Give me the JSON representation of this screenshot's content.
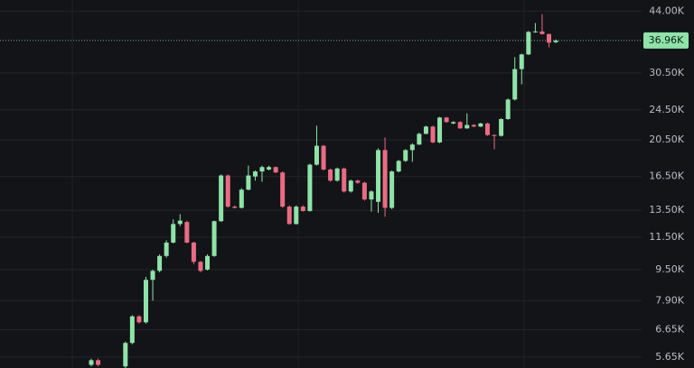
{
  "chart_data": {
    "type": "candlestick",
    "log_scale": true,
    "grid": true,
    "up_color": "#8ee3a8",
    "down_color": "#ea6b83",
    "ylim": [
      5300,
      47000
    ],
    "yticks": [
      {
        "value": 5650,
        "label": "5.65K"
      },
      {
        "value": 6650,
        "label": "6.65K"
      },
      {
        "value": 7900,
        "label": "7.90K"
      },
      {
        "value": 9500,
        "label": "9.50K"
      },
      {
        "value": 11500,
        "label": "11.50K"
      },
      {
        "value": 13500,
        "label": "13.50K"
      },
      {
        "value": 16500,
        "label": "16.50K"
      },
      {
        "value": 20500,
        "label": "20.50K"
      },
      {
        "value": 24500,
        "label": "24.50K"
      },
      {
        "value": 30500,
        "label": "30.50K"
      },
      {
        "value": 44000,
        "label": "44.00K"
      }
    ],
    "last_price": {
      "value": 36960,
      "label": "36.96K"
    },
    "open": [
      5400,
      5550,
      null,
      null,
      null,
      5350,
      6150,
      7200,
      6950,
      8940,
      9430,
      10300,
      11150,
      12450,
      12600,
      11150,
      9950,
      9500,
      10300,
      12660,
      16600,
      13800,
      13700,
      15260,
      16500,
      17000,
      17200,
      17450,
      16900,
      13800,
      12450,
      13800,
      13450,
      17700,
      19800,
      17200,
      16100,
      17300,
      15100,
      16100,
      15900,
      14400,
      14200,
      19300,
      13700,
      17000,
      18100,
      19300,
      19940,
      21250,
      22190,
      20200,
      23410,
      22600,
      22790,
      21950,
      22400,
      22190,
      22600,
      21100,
      21000,
      23200,
      26050,
      31200,
      34040,
      38900,
      39000,
      38400,
      36600
    ],
    "high": [
      5600,
      5600,
      null,
      null,
      null,
      6200,
      7250,
      7250,
      9100,
      9500,
      10400,
      11300,
      12800,
      13200,
      12700,
      11200,
      10000,
      10400,
      12700,
      16700,
      16700,
      13900,
      15400,
      17600,
      17100,
      17600,
      17600,
      17500,
      17000,
      13900,
      13900,
      13900,
      17800,
      22300,
      19900,
      17300,
      17400,
      17400,
      16200,
      16200,
      16000,
      15200,
      19500,
      20800,
      17100,
      18200,
      19400,
      20100,
      21400,
      22300,
      22300,
      23500,
      23500,
      22900,
      22900,
      24000,
      22500,
      22700,
      22700,
      21200,
      23300,
      26200,
      33500,
      34200,
      39100,
      41000,
      43200,
      38500,
      37200
    ],
    "low": [
      5350,
      5350,
      null,
      null,
      null,
      5300,
      6100,
      6900,
      6900,
      7900,
      9350,
      10200,
      11100,
      12300,
      11100,
      9800,
      9350,
      9450,
      10250,
      12600,
      13700,
      13650,
      13650,
      15200,
      16100,
      16000,
      17100,
      16850,
      13700,
      12400,
      12400,
      13400,
      13400,
      17600,
      17100,
      16000,
      16000,
      15000,
      15000,
      15800,
      14300,
      13400,
      13300,
      13000,
      13600,
      16900,
      18000,
      18000,
      19900,
      21200,
      20100,
      20100,
      22700,
      22500,
      21900,
      21900,
      22100,
      22100,
      21000,
      19400,
      20900,
      23100,
      25900,
      28500,
      33900,
      38700,
      38300,
      35500,
      36400
    ],
    "close": [
      5550,
      5400,
      null,
      null,
      null,
      6150,
      7200,
      6950,
      8940,
      9430,
      10300,
      11150,
      12450,
      12700,
      11150,
      9950,
      9430,
      10300,
      12660,
      16600,
      13800,
      13700,
      15260,
      16600,
      17000,
      17450,
      17450,
      16900,
      13800,
      12450,
      13800,
      13450,
      17700,
      19800,
      17200,
      16100,
      17300,
      15100,
      16100,
      15900,
      14400,
      15100,
      19300,
      13700,
      17000,
      18100,
      19300,
      19940,
      21250,
      22190,
      20200,
      23410,
      22790,
      22790,
      21950,
      22400,
      22190,
      22600,
      21100,
      21000,
      23200,
      26050,
      31200,
      34040,
      38900,
      39000,
      38400,
      36500,
      36960
    ]
  }
}
